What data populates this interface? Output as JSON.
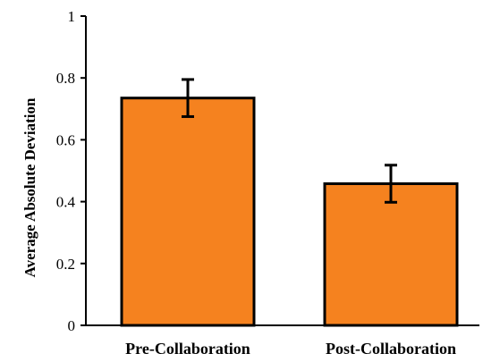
{
  "chart_data": {
    "type": "bar",
    "categories": [
      "Pre-Collaboration",
      "Post-Collaboration"
    ],
    "values": [
      0.735,
      0.458
    ],
    "error": [
      0.06,
      0.06
    ],
    "title": "",
    "xlabel": "",
    "ylabel": "Average Absolute Deviation",
    "ylim": [
      0,
      1
    ],
    "yticks": [
      "0",
      "0.2",
      "0.4",
      "0.6",
      "0.8",
      "1"
    ],
    "grid": false,
    "bar_color": "#F5821F",
    "bar_edge_color": "#000000"
  }
}
